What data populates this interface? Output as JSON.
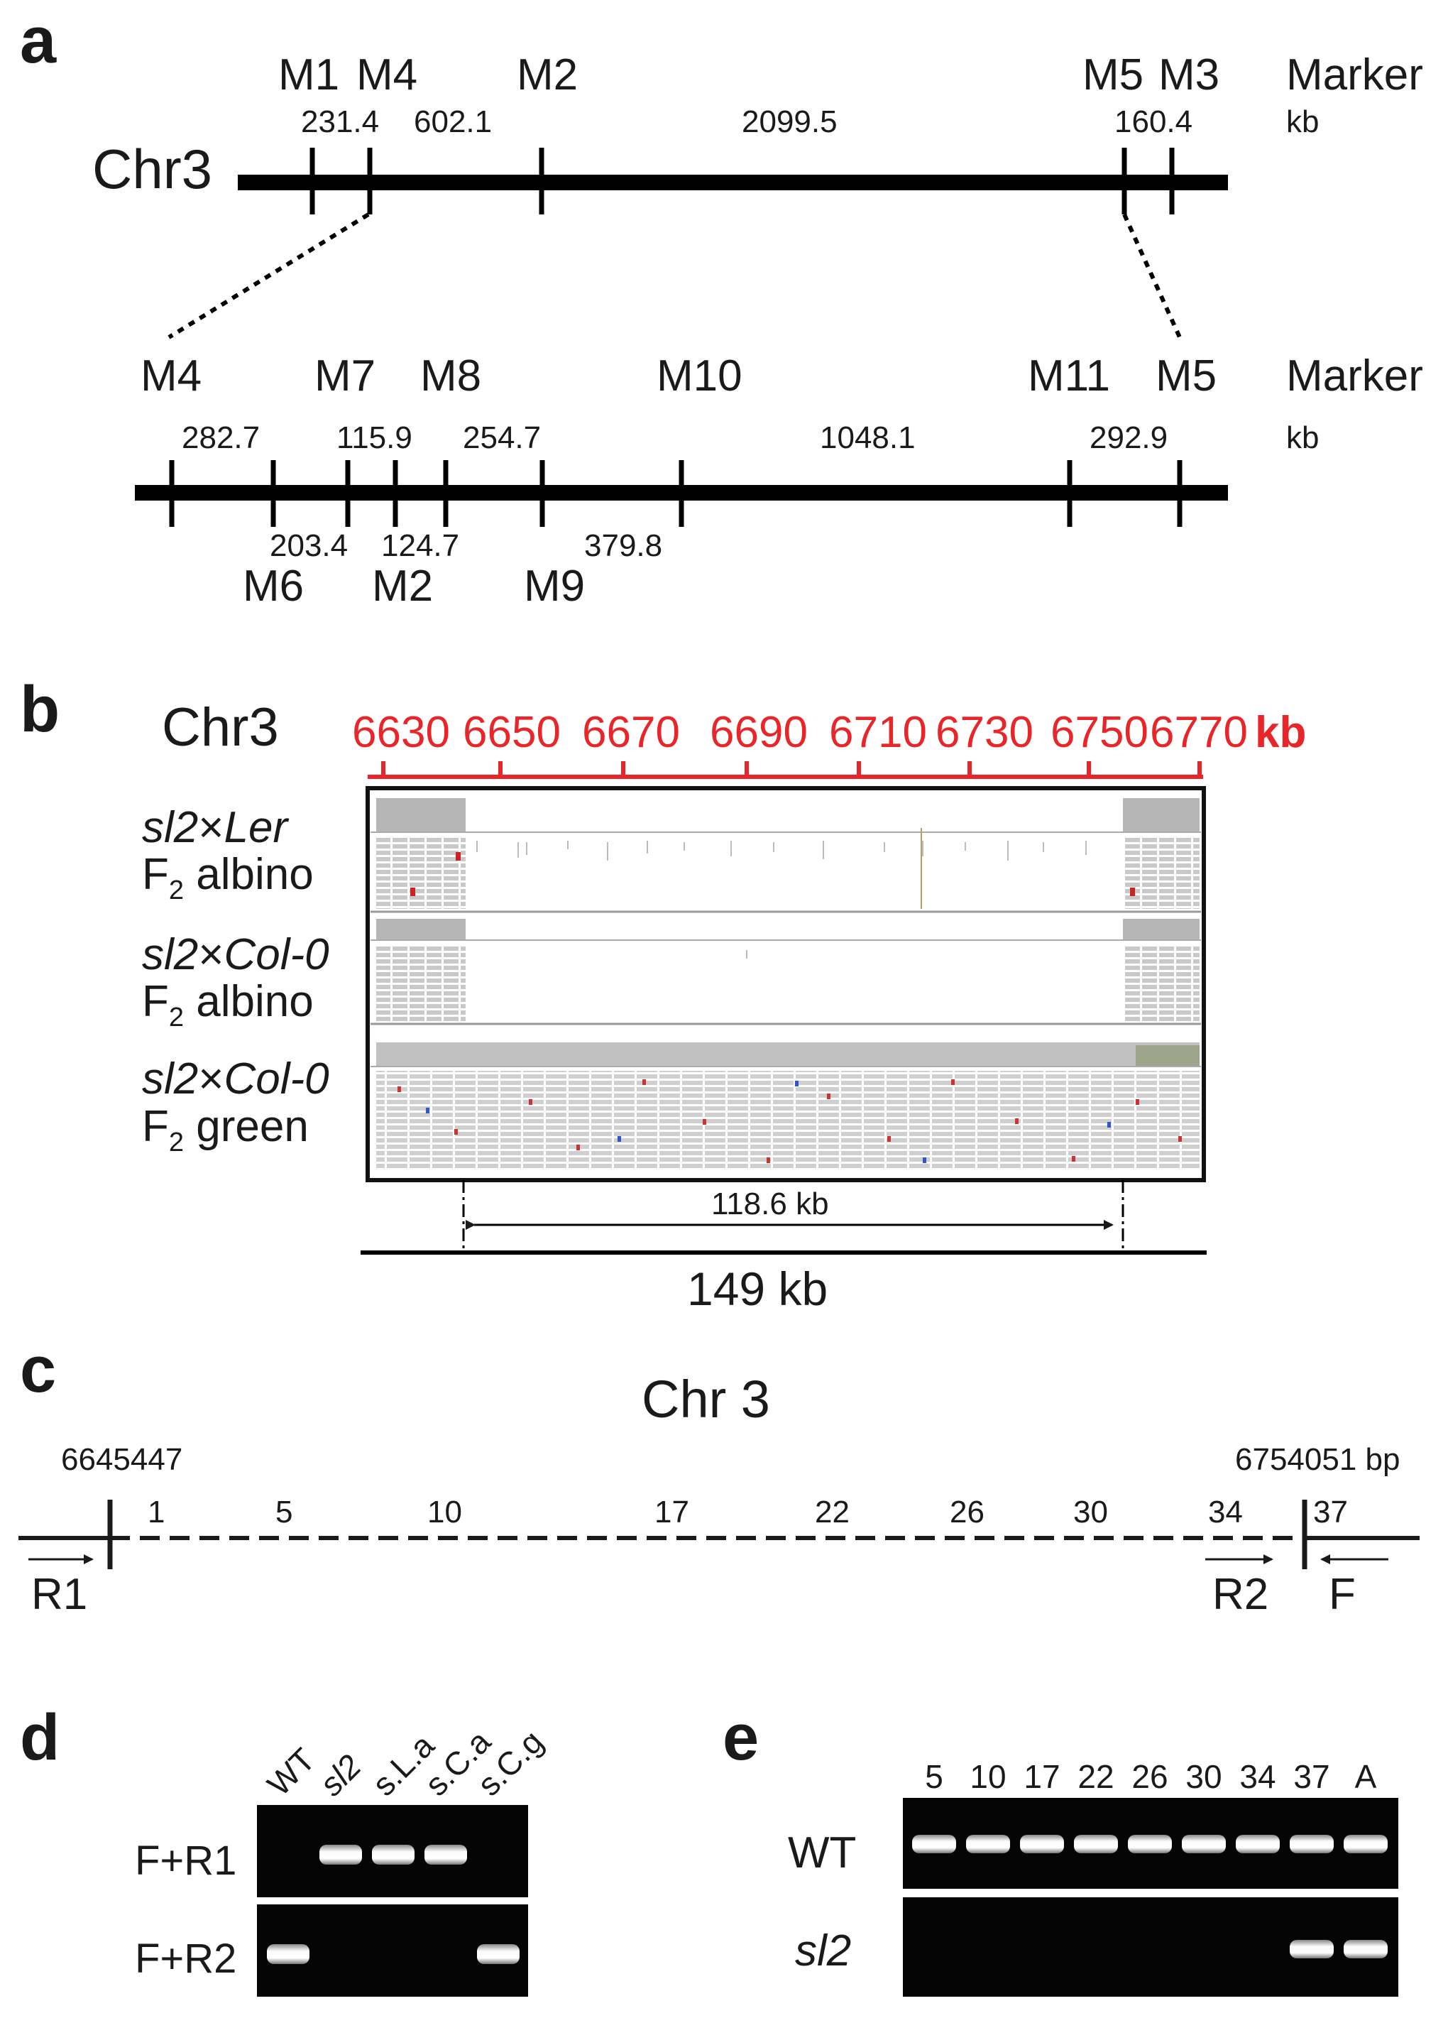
{
  "panels": {
    "a": "a",
    "b": "b",
    "c": "c",
    "d": "d",
    "e": "e"
  },
  "a": {
    "chr": "Chr3",
    "marker_word": "Marker",
    "kb_word": "kb",
    "top_markers": [
      "M1",
      "M4",
      "M2",
      "M5",
      "M3"
    ],
    "top_dists": [
      "231.4",
      "602.1",
      "2099.5",
      "160.4"
    ],
    "bottom_markers_upper": [
      "M4",
      "M7",
      "M8",
      "M10",
      "M11",
      "M5"
    ],
    "bottom_markers_lower": [
      "M6",
      "M2",
      "M9"
    ],
    "bottom_dists_upper": [
      "282.7",
      "115.9",
      "254.7",
      "1048.1",
      "292.9"
    ],
    "bottom_dists_lower": [
      "203.4",
      "124.7",
      "379.8"
    ]
  },
  "b": {
    "chr": "Chr3",
    "scale_ticks": [
      "6630",
      "6650",
      "6670",
      "6690",
      "6710",
      "6730",
      "6750",
      "6770"
    ],
    "scale_unit": "kb",
    "tracks": [
      {
        "cross_a": "sl2",
        "cross_x": "×",
        "cross_b": "Ler",
        "gen": "F",
        "gen_sub": "2",
        "pheno": " albino"
      },
      {
        "cross_a": "sl2",
        "cross_x": "×",
        "cross_b": "Col-0",
        "gen": "F",
        "gen_sub": "2",
        "pheno": " albino"
      },
      {
        "cross_a": "sl2",
        "cross_x": "×",
        "cross_b": "Col-0",
        "gen": "F",
        "gen_sub": "2",
        "pheno": " green"
      }
    ],
    "inner_span": "118.6 kb",
    "outer_span": "149 kb"
  },
  "c": {
    "title": "Chr 3",
    "left_pos": "6645447",
    "right_pos": "6754051 bp",
    "gene_nums": [
      "1",
      "5",
      "10",
      "17",
      "22",
      "26",
      "30",
      "34",
      "37"
    ],
    "primers": [
      "R1",
      "R2",
      "F"
    ]
  },
  "d": {
    "lanes": [
      "WT",
      "sl2",
      "s.L.a",
      "s.C.a",
      "s.C.g"
    ],
    "rows": [
      "F+R1",
      "F+R2"
    ],
    "bands": [
      [
        0,
        1,
        1,
        1,
        0
      ],
      [
        1,
        0,
        0,
        0,
        1
      ]
    ]
  },
  "e": {
    "lanes": [
      "5",
      "10",
      "17",
      "22",
      "26",
      "30",
      "34",
      "37",
      "A"
    ],
    "rows": [
      "WT",
      "sl2"
    ],
    "bands": [
      [
        1,
        1,
        1,
        1,
        1,
        1,
        1,
        1,
        1
      ],
      [
        0,
        0,
        0,
        0,
        0,
        0,
        0,
        1,
        1
      ]
    ]
  },
  "colors": {
    "scale_red": "#e8262a",
    "gel_bg": "#050505",
    "band": "#f2f2f2"
  }
}
